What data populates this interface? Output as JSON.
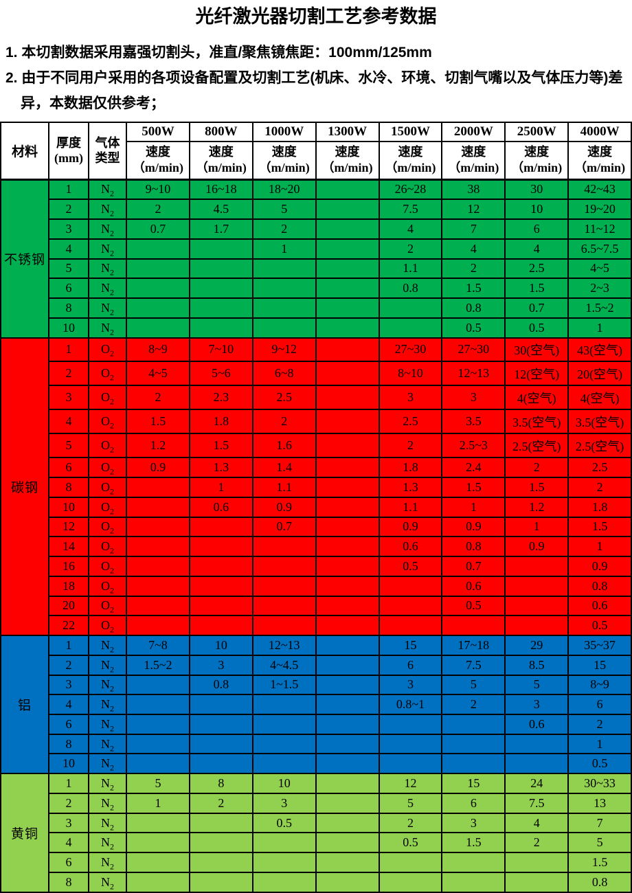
{
  "title": "光纤激光器切割工艺参考数据",
  "notes": [
    "1. 本切割数据采用嘉强切割头，准直/聚焦镜焦距：100mm/125mm",
    "2. 由于不同用户采用的各项设备配置及切割工艺(机床、水冷、环境、切割气嘴以及气体压力等)差异，本数据仅供参考；"
  ],
  "table": {
    "header": {
      "material": "材料",
      "thickness_label": "厚度",
      "thickness_unit": "(mm)",
      "gas_line1": "气体",
      "gas_line2": "类型",
      "powers": [
        "500W",
        "800W",
        "1000W",
        "1300W",
        "1500W",
        "2000W",
        "2500W",
        "4000W"
      ],
      "speed_label": "速度",
      "speed_unit": "（m/min)"
    },
    "sections": [
      {
        "material": "不锈钢",
        "color": "#00b050",
        "rows": [
          {
            "t": "1",
            "gas": "N2",
            "v": [
              "9~10",
              "16~18",
              "18~20",
              "",
              "26~28",
              "38",
              "30",
              "42~43"
            ]
          },
          {
            "t": "2",
            "gas": "N2",
            "v": [
              "2",
              "4.5",
              "5",
              "",
              "7.5",
              "12",
              "10",
              "19~20"
            ]
          },
          {
            "t": "3",
            "gas": "N2",
            "v": [
              "0.7",
              "1.7",
              "2",
              "",
              "4",
              "7",
              "6",
              "11~12"
            ]
          },
          {
            "t": "4",
            "gas": "N2",
            "v": [
              "",
              "",
              "1",
              "",
              "2",
              "4",
              "4",
              "6.5~7.5"
            ]
          },
          {
            "t": "5",
            "gas": "N2",
            "v": [
              "",
              "",
              "",
              "",
              "1.1",
              "2",
              "2.5",
              "4~5"
            ]
          },
          {
            "t": "6",
            "gas": "N2",
            "v": [
              "",
              "",
              "",
              "",
              "0.8",
              "1.5",
              "1.5",
              "2~3"
            ]
          },
          {
            "t": "8",
            "gas": "N2",
            "v": [
              "",
              "",
              "",
              "",
              "",
              "0.8",
              "0.7",
              "1.5~2"
            ]
          },
          {
            "t": "10",
            "gas": "N2",
            "v": [
              "",
              "",
              "",
              "",
              "",
              "0.5",
              "0.5",
              "1"
            ]
          }
        ]
      },
      {
        "material": "碳钢",
        "color": "#ff0000",
        "rows": [
          {
            "t": "1",
            "gas": "O2",
            "v": [
              "8~9",
              "7~10",
              "9~12",
              "",
              "27~30",
              "27~30",
              "30(空气)",
              "43(空气)"
            ]
          },
          {
            "t": "2",
            "gas": "O2",
            "v": [
              "4~5",
              "5~6",
              "6~8",
              "",
              "8~10",
              "12~13",
              "12(空气)",
              "20(空气)"
            ]
          },
          {
            "t": "3",
            "gas": "O2",
            "v": [
              "2",
              "2.3",
              "2.5",
              "",
              "3",
              "3",
              "4(空气)",
              "4(空气)"
            ]
          },
          {
            "t": "4",
            "gas": "O2",
            "v": [
              "1.5",
              "1.8",
              "2",
              "",
              "2.5",
              "3.5",
              "3.5(空气)",
              "3.5(空气)"
            ]
          },
          {
            "t": "5",
            "gas": "O2",
            "v": [
              "1.2",
              "1.5",
              "1.6",
              "",
              "2",
              "2.5~3",
              "2.5(空气)",
              "2.5(空气)"
            ]
          },
          {
            "t": "6",
            "gas": "O2",
            "v": [
              "0.9",
              "1.3",
              "1.4",
              "",
              "1.8",
              "2.4",
              "2",
              "2.5"
            ]
          },
          {
            "t": "8",
            "gas": "O2",
            "v": [
              "",
              "1",
              "1.1",
              "",
              "1.3",
              "1.5",
              "1.5",
              "2"
            ]
          },
          {
            "t": "10",
            "gas": "O2",
            "v": [
              "",
              "0.6",
              "0.9",
              "",
              "1.1",
              "1",
              "1.2",
              "1.8"
            ]
          },
          {
            "t": "12",
            "gas": "O2",
            "v": [
              "",
              "",
              "0.7",
              "",
              "0.9",
              "0.9",
              "1",
              "1.5"
            ]
          },
          {
            "t": "14",
            "gas": "O2",
            "v": [
              "",
              "",
              "",
              "",
              "0.6",
              "0.8",
              "0.9",
              "1"
            ]
          },
          {
            "t": "16",
            "gas": "O2",
            "v": [
              "",
              "",
              "",
              "",
              "0.5",
              "0.7",
              "",
              "0.9"
            ]
          },
          {
            "t": "18",
            "gas": "O2",
            "v": [
              "",
              "",
              "",
              "",
              "",
              "0.6",
              "",
              "0.8"
            ]
          },
          {
            "t": "20",
            "gas": "O2",
            "v": [
              "",
              "",
              "",
              "",
              "",
              "0.5",
              "",
              "0.6"
            ]
          },
          {
            "t": "22",
            "gas": "O2",
            "v": [
              "",
              "",
              "",
              "",
              "",
              "",
              "",
              "0.5"
            ]
          }
        ]
      },
      {
        "material": "铝",
        "color": "#0070c0",
        "rows": [
          {
            "t": "1",
            "gas": "N2",
            "v": [
              "7~8",
              "10",
              "12~13",
              "",
              "15",
              "17~18",
              "29",
              "35~37"
            ]
          },
          {
            "t": "2",
            "gas": "N2",
            "v": [
              "1.5~2",
              "3",
              "4~4.5",
              "",
              "6",
              "7.5",
              "8.5",
              "15"
            ]
          },
          {
            "t": "3",
            "gas": "N2",
            "v": [
              "",
              "0.8",
              "1~1.5",
              "",
              "3",
              "5",
              "5",
              "8~9"
            ]
          },
          {
            "t": "4",
            "gas": "N2",
            "v": [
              "",
              "",
              "",
              "",
              "0.8~1",
              "2",
              "3",
              "6"
            ]
          },
          {
            "t": "6",
            "gas": "N2",
            "v": [
              "",
              "",
              "",
              "",
              "",
              "",
              "0.6",
              "2"
            ]
          },
          {
            "t": "8",
            "gas": "N2",
            "v": [
              "",
              "",
              "",
              "",
              "",
              "",
              "",
              "1"
            ]
          },
          {
            "t": "10",
            "gas": "N2",
            "v": [
              "",
              "",
              "",
              "",
              "",
              "",
              "",
              "0.5"
            ]
          }
        ]
      },
      {
        "material": "黄铜",
        "color": "#92d050",
        "rows": [
          {
            "t": "1",
            "gas": "N2",
            "v": [
              "5",
              "8",
              "10",
              "",
              "12",
              "15",
              "24",
              "30~33"
            ]
          },
          {
            "t": "2",
            "gas": "N2",
            "v": [
              "1",
              "2",
              "3",
              "",
              "5",
              "6",
              "7.5",
              "13"
            ]
          },
          {
            "t": "3",
            "gas": "N2",
            "v": [
              "",
              "",
              "0.5",
              "",
              "2",
              "3",
              "4",
              "7"
            ]
          },
          {
            "t": "4",
            "gas": "N2",
            "v": [
              "",
              "",
              "",
              "",
              "0.5",
              "1.5",
              "2",
              "5"
            ]
          },
          {
            "t": "6",
            "gas": "N2",
            "v": [
              "",
              "",
              "",
              "",
              "",
              "",
              "",
              "1.5"
            ]
          },
          {
            "t": "8",
            "gas": "N2",
            "v": [
              "",
              "",
              "",
              "",
              "",
              "",
              "",
              "0.8"
            ]
          }
        ]
      }
    ]
  }
}
